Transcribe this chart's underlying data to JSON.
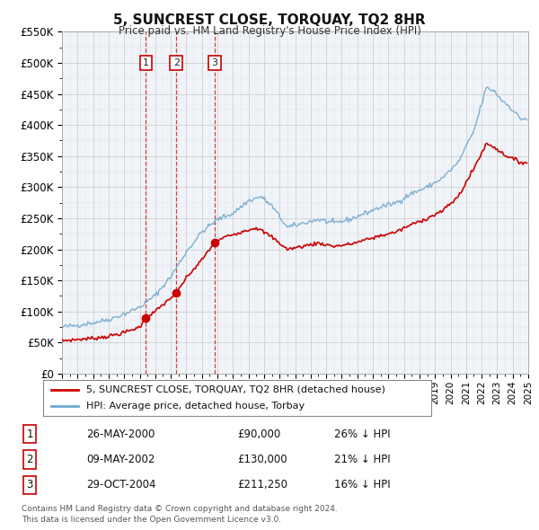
{
  "title": "5, SUNCREST CLOSE, TORQUAY, TQ2 8HR",
  "subtitle": "Price paid vs. HM Land Registry's House Price Index (HPI)",
  "legend_line1": "5, SUNCREST CLOSE, TORQUAY, TQ2 8HR (detached house)",
  "legend_line2": "HPI: Average price, detached house, Torbay",
  "sales": [
    {
      "label": "1",
      "price": 90000,
      "hpi_pct": "26% ↓ HPI",
      "display_date": "26-MAY-2000"
    },
    {
      "label": "2",
      "price": 130000,
      "hpi_pct": "21% ↓ HPI",
      "display_date": "09-MAY-2002"
    },
    {
      "label": "3",
      "price": 211250,
      "hpi_pct": "16% ↓ HPI",
      "display_date": "29-OCT-2004"
    }
  ],
  "sale_prices": [
    90000,
    130000,
    211250
  ],
  "sale_years": [
    2000.4,
    2002.36,
    2004.83
  ],
  "hpi_color": "#6fa8d0",
  "price_color": "#cc0000",
  "grid_color": "#cccccc",
  "background_color": "#f5f8fa",
  "chart_bg": "#f0f4f8",
  "ylim": [
    0,
    550000
  ],
  "xlim_start": 1995,
  "xlim_end": 2025,
  "footer": "Contains HM Land Registry data © Crown copyright and database right 2024.\nThis data is licensed under the Open Government Licence v3.0."
}
